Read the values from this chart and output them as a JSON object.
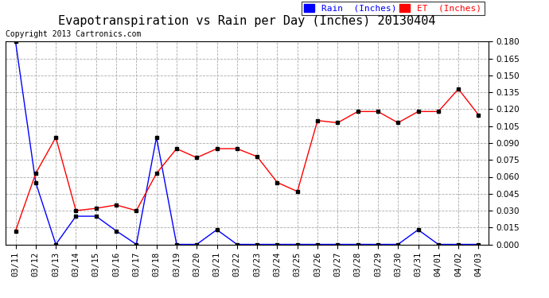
{
  "title": "Evapotranspiration vs Rain per Day (Inches) 20130404",
  "copyright": "Copyright 2013 Cartronics.com",
  "labels": [
    "03/11",
    "03/12",
    "03/13",
    "03/14",
    "03/15",
    "03/16",
    "03/17",
    "03/18",
    "03/19",
    "03/20",
    "03/21",
    "03/22",
    "03/23",
    "03/24",
    "03/25",
    "03/26",
    "03/27",
    "03/28",
    "03/29",
    "03/30",
    "03/31",
    "04/01",
    "04/02",
    "04/03"
  ],
  "rain": [
    0.18,
    0.055,
    0.0,
    0.025,
    0.025,
    0.012,
    0.0,
    0.095,
    0.0,
    0.0,
    0.013,
    0.0,
    0.0,
    0.0,
    0.0,
    0.0,
    0.0,
    0.0,
    0.0,
    0.0,
    0.013,
    0.0,
    0.0,
    0.0
  ],
  "et": [
    0.012,
    0.063,
    0.095,
    0.03,
    0.032,
    0.035,
    0.03,
    0.063,
    0.085,
    0.077,
    0.085,
    0.085,
    0.078,
    0.055,
    0.047,
    0.11,
    0.108,
    0.118,
    0.118,
    0.108,
    0.118,
    0.118,
    0.138,
    0.115
  ],
  "rain_color": "#0000ff",
  "et_color": "#ff0000",
  "bg_color": "#ffffff",
  "grid_color": "#aaaaaa",
  "ylim": [
    0.0,
    0.18
  ],
  "yticks": [
    0.0,
    0.015,
    0.03,
    0.045,
    0.06,
    0.075,
    0.09,
    0.105,
    0.12,
    0.135,
    0.15,
    0.165,
    0.18
  ],
  "title_fontsize": 11,
  "tick_fontsize": 7.5,
  "copyright_fontsize": 7,
  "legend_rain_label": "Rain  (Inches)",
  "legend_et_label": "ET  (Inches)",
  "legend_fontsize": 8
}
